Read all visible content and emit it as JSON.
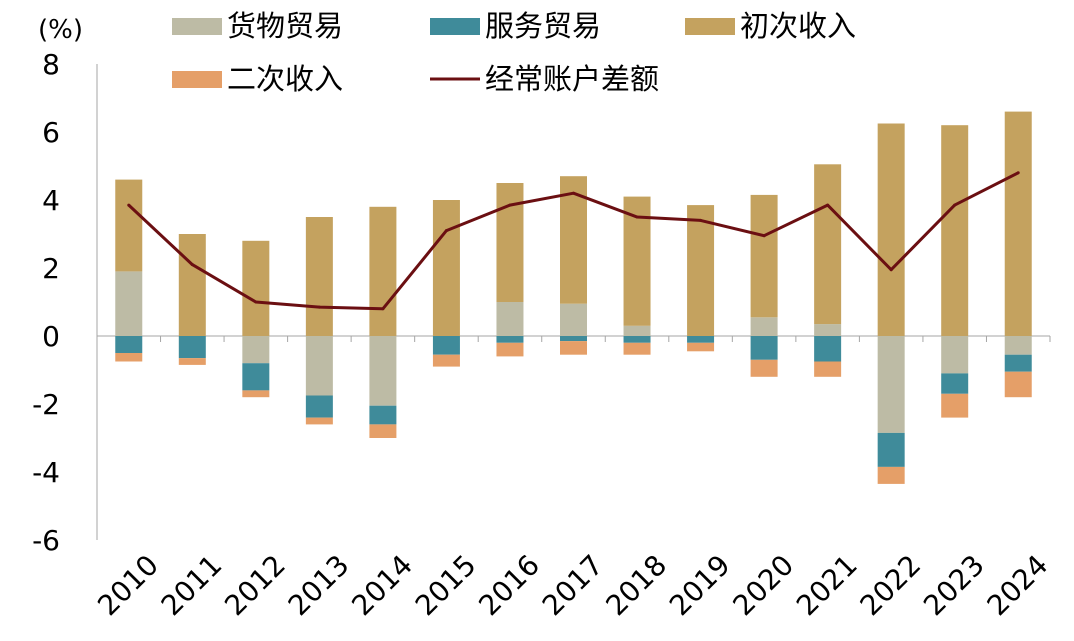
{
  "chart_data": {
    "type": "bar",
    "stacked": true,
    "unit_label": "(%)",
    "categories": [
      "2010",
      "2011",
      "2012",
      "2013",
      "2014",
      "2015",
      "2016",
      "2017",
      "2018",
      "2019",
      "2020",
      "2021",
      "2022",
      "2023",
      "2024"
    ],
    "series": [
      {
        "name": "货物贸易",
        "kind": "bar",
        "color": "#bdbba5",
        "values": [
          1.9,
          0.0,
          -0.8,
          -1.75,
          -2.05,
          0.0,
          1.0,
          0.95,
          0.3,
          0.0,
          0.55,
          0.35,
          -2.85,
          -1.1,
          -0.55
        ]
      },
      {
        "name": "服务贸易",
        "kind": "bar",
        "color": "#3f8b9a",
        "values": [
          -0.5,
          -0.65,
          -0.8,
          -0.65,
          -0.55,
          -0.55,
          -0.2,
          -0.15,
          -0.2,
          -0.2,
          -0.7,
          -0.75,
          -1.0,
          -0.6,
          -0.5
        ]
      },
      {
        "name": "初次收入",
        "kind": "bar",
        "color": "#c4a25f",
        "values": [
          2.7,
          3.0,
          2.8,
          3.5,
          3.8,
          4.0,
          3.5,
          3.75,
          3.8,
          3.85,
          3.6,
          4.7,
          6.25,
          6.2,
          6.6
        ]
      },
      {
        "name": "二次收入",
        "kind": "bar",
        "color": "#e59f68",
        "values": [
          -0.25,
          -0.2,
          -0.2,
          -0.2,
          -0.4,
          -0.35,
          -0.4,
          -0.4,
          -0.35,
          -0.25,
          -0.5,
          -0.45,
          -0.5,
          -0.7,
          -0.75
        ]
      },
      {
        "name": "经常账户差额",
        "kind": "line",
        "color": "#6b0f12",
        "values": [
          3.85,
          2.1,
          1.0,
          0.85,
          0.8,
          3.1,
          3.85,
          4.2,
          3.5,
          3.4,
          2.95,
          3.85,
          1.95,
          3.85,
          4.8
        ]
      }
    ],
    "ylim": [
      -6,
      8
    ],
    "yticks": [
      "8",
      "6",
      "4",
      "2",
      "0",
      "-2",
      "-4",
      "-6"
    ],
    "ytick_values": [
      8,
      6,
      4,
      2,
      0,
      -2,
      -4,
      -6
    ],
    "title": "",
    "xlabel": "",
    "ylabel": "(%)",
    "legend_position": "top"
  }
}
